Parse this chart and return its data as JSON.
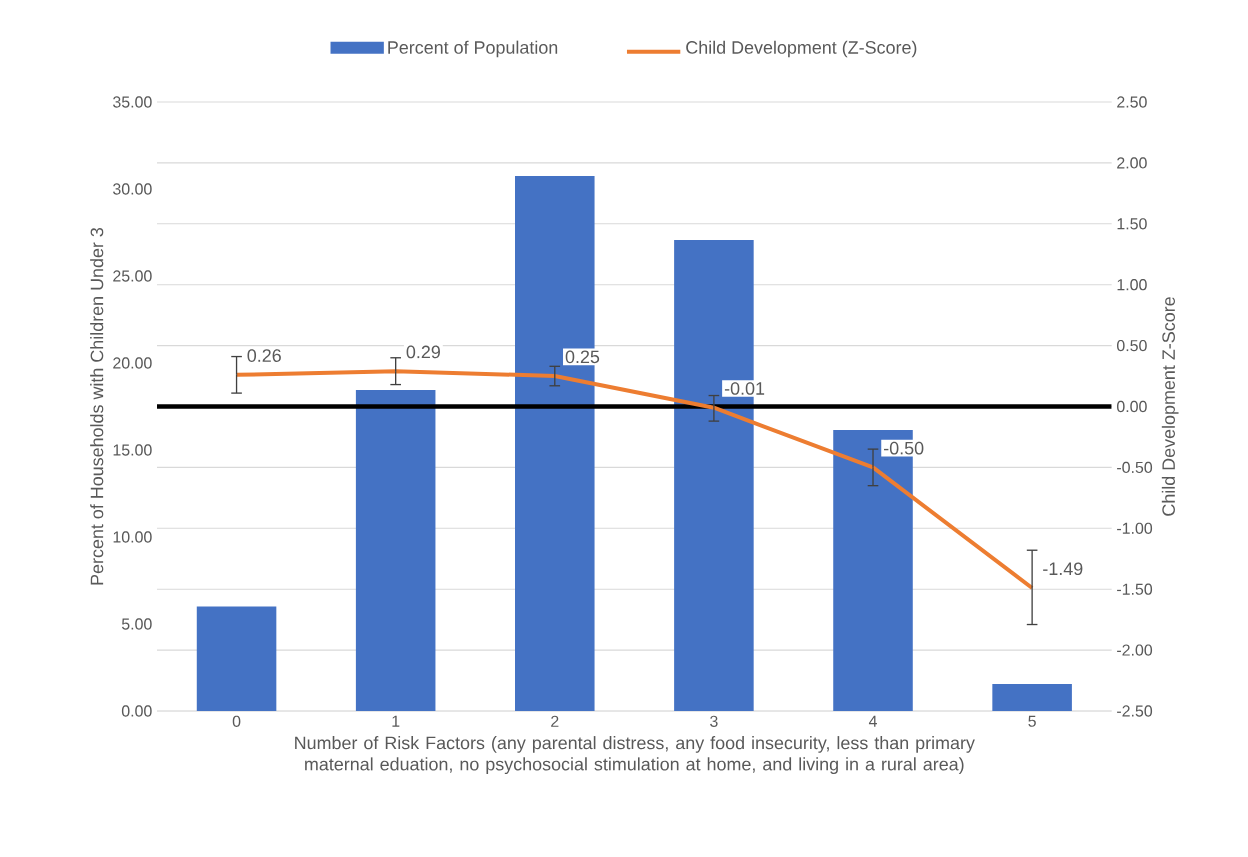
{
  "chart_data": {
    "type": "bar",
    "categories": [
      "0",
      "1",
      "2",
      "3",
      "4",
      "5"
    ],
    "xlabel": "Number of Risk Factors (any parental distress, any food insecurity, less than primary maternal eduation, no psychosocial stimulation at home, and living in a rural area)",
    "ylabel": "Percent of Households with Children Under 3",
    "y2label": "Child Development Z-Score",
    "ylim": [
      0,
      35
    ],
    "yticks": [
      {
        "value": 0,
        "label": "0.00"
      },
      {
        "value": 5,
        "label": "5.00"
      },
      {
        "value": 10,
        "label": "10.00"
      },
      {
        "value": 15,
        "label": "15.00"
      },
      {
        "value": 20,
        "label": "20.00"
      },
      {
        "value": 25,
        "label": "25.00"
      },
      {
        "value": 30,
        "label": "30.00"
      },
      {
        "value": 35,
        "label": "35.00"
      }
    ],
    "y2lim": [
      -2.5,
      2.5
    ],
    "y2ticks": [
      {
        "value": -2.5,
        "label": "-2.50"
      },
      {
        "value": -2,
        "label": "-2.00"
      },
      {
        "value": -1.5,
        "label": "-1.50"
      },
      {
        "value": -1,
        "label": "-1.00"
      },
      {
        "value": -0.5,
        "label": "-0.50"
      },
      {
        "value": 0,
        "label": "0.00"
      },
      {
        "value": 0.5,
        "label": "0.50"
      },
      {
        "value": 1,
        "label": "1.00"
      },
      {
        "value": 1.5,
        "label": "1.50"
      },
      {
        "value": 2,
        "label": "2.00"
      },
      {
        "value": 2.5,
        "label": "2.50"
      }
    ],
    "grid": "y",
    "legend": "top",
    "ref_lines": [
      {
        "axis": "y2",
        "value": 0,
        "color": "#000000"
      }
    ],
    "series": [
      {
        "name": "Percent of Population",
        "type": "bar",
        "color": "#4472c4",
        "values": [
          6.0,
          18.45,
          30.75,
          27.07,
          16.15,
          1.55
        ]
      },
      {
        "name": "Child Development (Z-Score)",
        "type": "line",
        "axis": "y2",
        "color": "#ed7d31",
        "values": [
          0.26,
          0.29,
          0.25,
          -0.01,
          -0.5,
          -1.49
        ],
        "errors": [
          [
            0.11,
            0.41
          ],
          [
            0.18,
            0.4
          ],
          [
            0.17,
            0.33
          ],
          [
            -0.12,
            0.09
          ],
          [
            -0.65,
            -0.35
          ],
          [
            -1.79,
            -1.18
          ]
        ],
        "value_labels": [
          "0.26",
          "0.29",
          "0.25",
          "-0.01",
          "-0.50",
          "-1.49"
        ]
      }
    ]
  }
}
